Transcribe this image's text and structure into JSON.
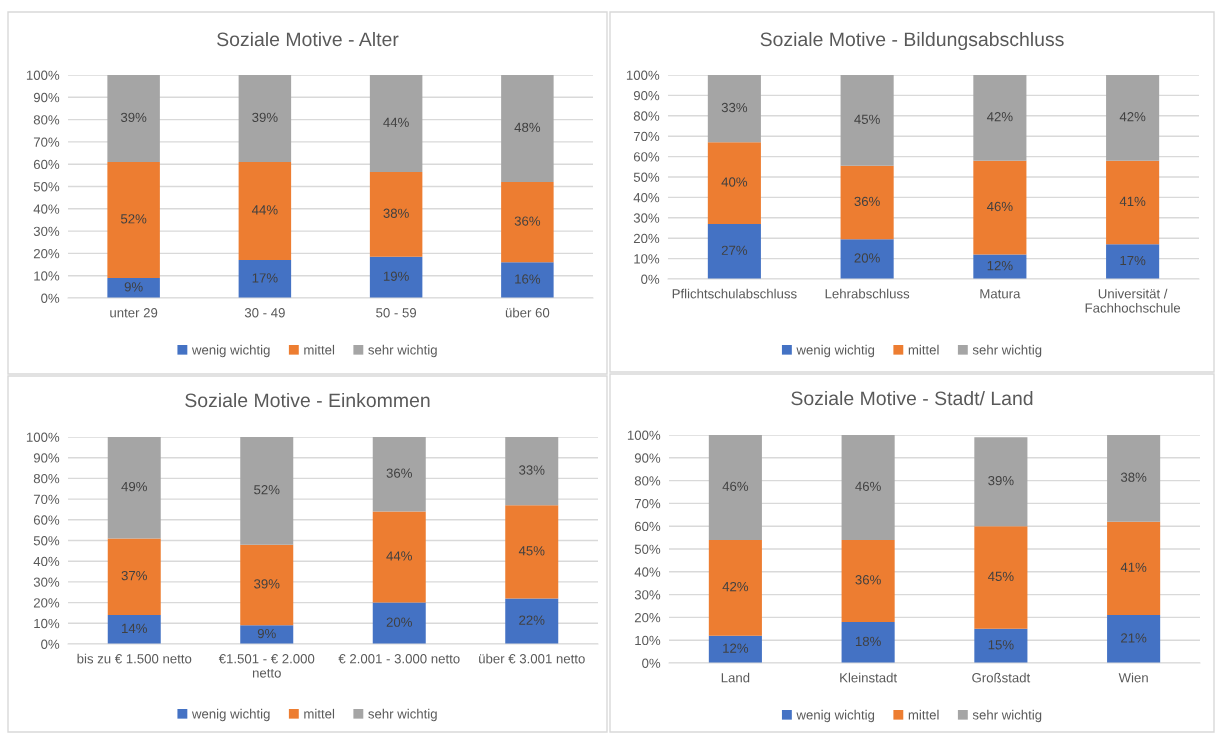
{
  "chart_data": [
    {
      "type": "bar",
      "stacked": true,
      "title": "Soziale Motive - Alter",
      "categories": [
        "unter 29",
        "30 - 49",
        "50 - 59",
        "über 60"
      ],
      "series": [
        {
          "name": "wenig wichtig",
          "color": "#4472c4",
          "values": [
            9,
            17,
            18.5,
            16
          ],
          "value_labels": [
            "9%",
            "17%",
            "19%",
            "16%"
          ]
        },
        {
          "name": "mittel",
          "color": "#ed7d31",
          "values": [
            52,
            44,
            38,
            36
          ],
          "value_labels": [
            "52%",
            "44%",
            "38%",
            "36%"
          ]
        },
        {
          "name": "sehr wichtig",
          "color": "#a5a5a5",
          "values": [
            39,
            39,
            43.5,
            48
          ],
          "value_labels": [
            "39%",
            "39%",
            "44%",
            "48%"
          ]
        }
      ],
      "ylim": [
        0,
        100
      ],
      "yticks": [
        {
          "value": 0,
          "label": "0%"
        },
        {
          "value": 10,
          "label": "10%"
        },
        {
          "value": 20,
          "label": "20%"
        },
        {
          "value": 30,
          "label": "30%"
        },
        {
          "value": 40,
          "label": "40%"
        },
        {
          "value": 50,
          "label": "50%"
        },
        {
          "value": 60,
          "label": "60%"
        },
        {
          "value": 70,
          "label": "70%"
        },
        {
          "value": 80,
          "label": "80%"
        },
        {
          "value": 90,
          "label": "90%"
        },
        {
          "value": 100,
          "label": "100%"
        }
      ],
      "grid": "y",
      "legend": "bottom"
    },
    {
      "type": "bar",
      "stacked": true,
      "title": "Soziale Motive - Bildungsabschluss",
      "categories": [
        "Pflichtschulabschluss",
        "Lehrabschluss",
        "Matura",
        "Universität /\nFachhochschule"
      ],
      "series": [
        {
          "name": "wenig wichtig",
          "color": "#4472c4",
          "values": [
            27,
            19.5,
            12,
            17
          ],
          "value_labels": [
            "27%",
            "20%",
            "12%",
            "17%"
          ]
        },
        {
          "name": "mittel",
          "color": "#ed7d31",
          "values": [
            40,
            36,
            46,
            41
          ],
          "value_labels": [
            "40%",
            "36%",
            "46%",
            "41%"
          ]
        },
        {
          "name": "sehr wichtig",
          "color": "#a5a5a5",
          "values": [
            33,
            44.5,
            42,
            42
          ],
          "value_labels": [
            "33%",
            "45%",
            "42%",
            "42%"
          ]
        }
      ],
      "ylim": [
        0,
        100
      ],
      "yticks": [
        {
          "value": 0,
          "label": "0%"
        },
        {
          "value": 10,
          "label": "10%"
        },
        {
          "value": 20,
          "label": "20%"
        },
        {
          "value": 30,
          "label": "30%"
        },
        {
          "value": 40,
          "label": "40%"
        },
        {
          "value": 50,
          "label": "50%"
        },
        {
          "value": 60,
          "label": "60%"
        },
        {
          "value": 70,
          "label": "70%"
        },
        {
          "value": 80,
          "label": "80%"
        },
        {
          "value": 90,
          "label": "90%"
        },
        {
          "value": 100,
          "label": "100%"
        }
      ],
      "grid": "y",
      "legend": "bottom"
    },
    {
      "type": "bar",
      "stacked": true,
      "title": "Soziale Motive - Einkommen",
      "categories": [
        "bis zu € 1.500 netto",
        "€1.501 - € 2.000\nnetto",
        "€ 2.001 - 3.000 netto",
        "über € 3.001 netto"
      ],
      "series": [
        {
          "name": "wenig wichtig",
          "color": "#4472c4",
          "values": [
            14,
            9,
            20,
            22
          ],
          "value_labels": [
            "14%",
            "9%",
            "20%",
            "22%"
          ]
        },
        {
          "name": "mittel",
          "color": "#ed7d31",
          "values": [
            37,
            39,
            44,
            45
          ],
          "value_labels": [
            "37%",
            "39%",
            "44%",
            "45%"
          ]
        },
        {
          "name": "sehr wichtig",
          "color": "#a5a5a5",
          "values": [
            49,
            52,
            36,
            33
          ],
          "value_labels": [
            "49%",
            "52%",
            "36%",
            "33%"
          ]
        }
      ],
      "ylim": [
        0,
        100
      ],
      "yticks": [
        {
          "value": 0,
          "label": "0%"
        },
        {
          "value": 10,
          "label": "10%"
        },
        {
          "value": 20,
          "label": "20%"
        },
        {
          "value": 30,
          "label": "30%"
        },
        {
          "value": 40,
          "label": "40%"
        },
        {
          "value": 50,
          "label": "50%"
        },
        {
          "value": 60,
          "label": "60%"
        },
        {
          "value": 70,
          "label": "70%"
        },
        {
          "value": 80,
          "label": "80%"
        },
        {
          "value": 90,
          "label": "90%"
        },
        {
          "value": 100,
          "label": "100%"
        }
      ],
      "grid": "y",
      "legend": "bottom"
    },
    {
      "type": "bar",
      "stacked": true,
      "title": "Soziale Motive - Stadt/ Land",
      "categories": [
        "Land",
        "Kleinstadt",
        "Großstadt",
        "Wien"
      ],
      "series": [
        {
          "name": "wenig wichtig",
          "color": "#4472c4",
          "values": [
            12,
            18,
            15,
            21
          ],
          "value_labels": [
            "12%",
            "18%",
            "15%",
            "21%"
          ]
        },
        {
          "name": "mittel",
          "color": "#ed7d31",
          "values": [
            42,
            36,
            45,
            41
          ],
          "value_labels": [
            "42%",
            "36%",
            "45%",
            "41%"
          ]
        },
        {
          "name": "sehr wichtig",
          "color": "#a5a5a5",
          "values": [
            46,
            46,
            39,
            38
          ],
          "value_labels": [
            "46%",
            "46%",
            "39%",
            "38%"
          ]
        }
      ],
      "ylim": [
        0,
        100
      ],
      "yticks": [
        {
          "value": 0,
          "label": "0%"
        },
        {
          "value": 10,
          "label": "10%"
        },
        {
          "value": 20,
          "label": "20%"
        },
        {
          "value": 30,
          "label": "30%"
        },
        {
          "value": 40,
          "label": "40%"
        },
        {
          "value": 50,
          "label": "50%"
        },
        {
          "value": 60,
          "label": "60%"
        },
        {
          "value": 70,
          "label": "70%"
        },
        {
          "value": 80,
          "label": "80%"
        },
        {
          "value": 90,
          "label": "90%"
        },
        {
          "value": 100,
          "label": "100%"
        }
      ],
      "grid": "y",
      "legend": "bottom"
    }
  ]
}
